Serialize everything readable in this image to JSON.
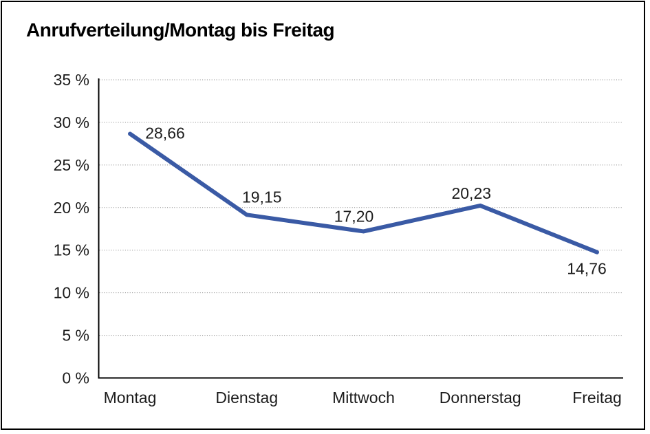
{
  "title": "Anrufverteilung/Montag bis Freitag",
  "chart_data": {
    "type": "line",
    "title": "Anrufverteilung/Montag bis Freitag",
    "categories": [
      "Montag",
      "Dienstag",
      "Mittwoch",
      "Donnerstag",
      "Freitag"
    ],
    "values": [
      28.66,
      19.15,
      17.2,
      20.23,
      14.76
    ],
    "value_labels": [
      "28,66",
      "19,15",
      "17,20",
      "20,23",
      "14,76"
    ],
    "unit": "%",
    "decimal_separator": ",",
    "xlabel": "",
    "ylabel": "",
    "ylim": [
      0,
      35
    ],
    "y_tick_step": 5,
    "y_tick_labels": [
      "0 %",
      "5 %",
      "10 %",
      "15 %",
      "20 %",
      "25 %",
      "30 %",
      "35 %"
    ],
    "grid": "horizontal-dotted",
    "legend": "none",
    "line_color": "#3A5AA5",
    "axis_color": "#000000",
    "grid_color": "#858585"
  }
}
